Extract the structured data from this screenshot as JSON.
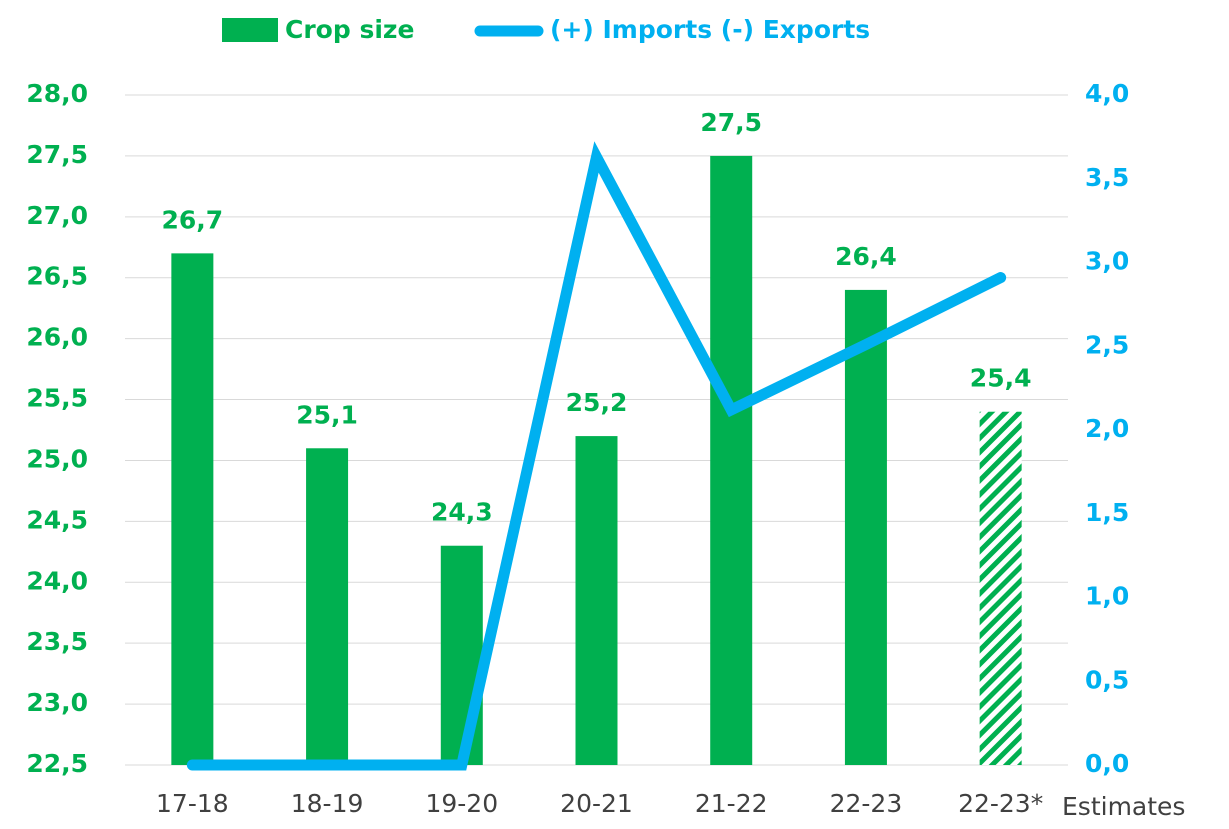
{
  "chart_data": {
    "type": "bar",
    "categories": [
      "17-18",
      "18-19",
      "19-20",
      "20-21",
      "21-22",
      "22-23",
      "22-23*"
    ],
    "annotation": "Estimates",
    "series": [
      {
        "name": "Crop size",
        "color": "#00b050",
        "type": "bar",
        "values": [
          26.7,
          25.1,
          24.3,
          25.2,
          27.5,
          26.4,
          25.4
        ],
        "value_labels": [
          "26,7",
          "25,1",
          "24,3",
          "25,2",
          "27,5",
          "26,4",
          "25,4"
        ],
        "hatched": [
          false,
          false,
          false,
          false,
          false,
          false,
          true
        ]
      },
      {
        "name": "(+) Imports (-) Exports",
        "color": "#00b0f0",
        "type": "line",
        "axis": "y2",
        "values": [
          0,
          0,
          0,
          3.63,
          2.12,
          2.51,
          2.91
        ]
      }
    ],
    "ylim": [
      22.5,
      28.0
    ],
    "yticks": [
      {
        "value": 22.5,
        "label": "22,5"
      },
      {
        "value": 23.0,
        "label": "23,0"
      },
      {
        "value": 23.5,
        "label": "23,5"
      },
      {
        "value": 24.0,
        "label": "24,0"
      },
      {
        "value": 24.5,
        "label": "24,5"
      },
      {
        "value": 25.0,
        "label": "25,0"
      },
      {
        "value": 25.5,
        "label": "25,5"
      },
      {
        "value": 26.0,
        "label": "26,0"
      },
      {
        "value": 26.5,
        "label": "26,5"
      },
      {
        "value": 27.0,
        "label": "27,0"
      },
      {
        "value": 27.5,
        "label": "27,5"
      },
      {
        "value": 28.0,
        "label": "28,0"
      }
    ],
    "y2lim": [
      0,
      4.0
    ],
    "y2ticks": [
      {
        "value": 0,
        "label": "0,0"
      },
      {
        "value": 0.5,
        "label": "0,5"
      },
      {
        "value": 1.0,
        "label": "1,0"
      },
      {
        "value": 1.5,
        "label": "1,5"
      },
      {
        "value": 2.0,
        "label": "2,0"
      },
      {
        "value": 2.5,
        "label": "2,5"
      },
      {
        "value": 3.0,
        "label": "3,0"
      },
      {
        "value": 3.5,
        "label": "3,5"
      },
      {
        "value": 4.0,
        "label": "4,0"
      }
    ],
    "grid": true,
    "legend": "top"
  }
}
